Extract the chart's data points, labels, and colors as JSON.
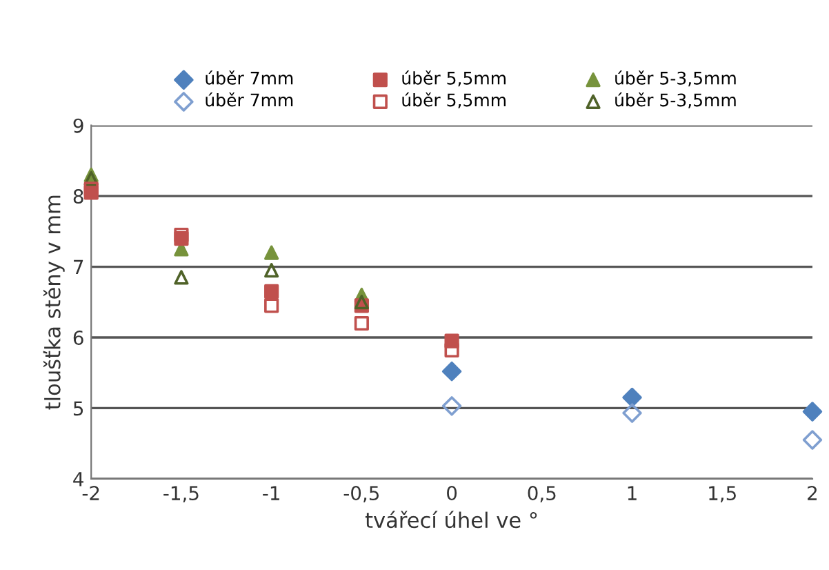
{
  "chart_data": {
    "type": "scatter",
    "xlabel": "tvářecí úhel ve °",
    "ylabel": "tloušťka stěny v mm",
    "xlim": [
      -2,
      2
    ],
    "xticks": [
      {
        "value": -2,
        "label": "-2"
      },
      {
        "value": -1.5,
        "label": "-1,5"
      },
      {
        "value": -1,
        "label": "-1"
      },
      {
        "value": -0.5,
        "label": "-0,5"
      },
      0,
      {
        "value": 0.5,
        "label": "0,5"
      },
      1,
      {
        "value": 1.5,
        "label": "1,5"
      },
      2
    ],
    "ylim": [
      4,
      9
    ],
    "yticks": [
      4,
      5,
      6,
      7,
      8,
      9
    ],
    "grid": "y",
    "legend": "top",
    "series": [
      {
        "name": "úběr 7mm",
        "color": "#4f81bd",
        "marker": "diamond",
        "x": [
          0,
          1,
          2
        ],
        "values": [
          5.52,
          5.15,
          4.95
        ]
      },
      {
        "name": "úběr 7mm",
        "color": "#7f9fd0",
        "marker": "diamond",
        "x": [
          0,
          1,
          2
        ],
        "values": [
          5.03,
          4.93,
          4.55
        ]
      },
      {
        "name": "úběr 5,5mm",
        "color": "#c0504d",
        "marker": "square",
        "x": [
          -2,
          -1.5,
          -1,
          -0.5,
          0
        ],
        "values": [
          8.05,
          7.4,
          6.65,
          6.45,
          5.95
        ]
      },
      {
        "name": "úběr 5,5mm",
        "color": "#c0504d",
        "marker": "square",
        "x": [
          -2,
          -1.5,
          -1,
          -0.5,
          0
        ],
        "values": [
          8.1,
          7.45,
          6.45,
          6.2,
          5.82
        ]
      },
      {
        "name": "úběr 5-3,5mm",
        "color": "#77933c",
        "marker": "triangle",
        "x": [
          -2,
          -1.5,
          -1,
          -0.5
        ],
        "values": [
          8.3,
          7.25,
          7.2,
          6.6
        ]
      },
      {
        "name": "úběr 5-3,5mm",
        "color": "#4f6228",
        "marker": "triangle",
        "x": [
          -2,
          -1.5,
          -1,
          -0.5
        ],
        "values": [
          8.25,
          6.85,
          6.95,
          6.5
        ]
      }
    ]
  }
}
